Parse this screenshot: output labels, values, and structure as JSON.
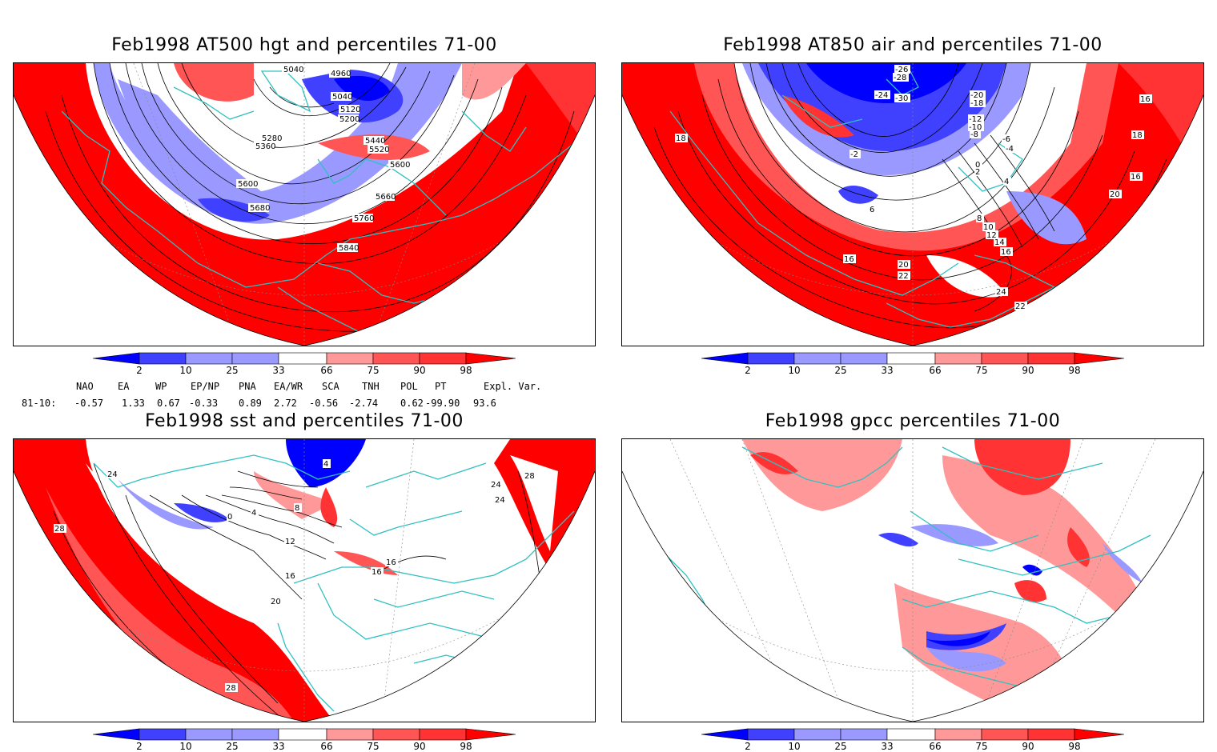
{
  "panels": {
    "p1": {
      "title": "Feb1998 AT500 hgt and percentiles 71-00",
      "contour_labels": [
        "5040",
        "4960",
        "5040",
        "5120",
        "5200",
        "5280",
        "5360",
        "5440",
        "5520",
        "5600",
        "5600",
        "5680",
        "5660",
        "5760",
        "5840"
      ]
    },
    "p2": {
      "title": "Feb1998 AT850 air and percentiles 71-00",
      "contour_labels": [
        "-26",
        "-28",
        "-30",
        "-24",
        "-20",
        "-18",
        "-12",
        "-10",
        "-8",
        "-6",
        "-4",
        "-2",
        "0",
        "2",
        "4",
        "6",
        "8",
        "10",
        "12",
        "14",
        "16",
        "16",
        "16",
        "18",
        "18",
        "20",
        "20",
        "22",
        "22",
        "24",
        "16"
      ]
    },
    "p3": {
      "title": "Feb1998 sst and percentiles 71-00",
      "contour_labels": [
        "24",
        "28",
        "0",
        "4",
        "8",
        "12",
        "16",
        "20",
        "24",
        "28",
        "16",
        "16",
        "4",
        "24",
        "28"
      ]
    },
    "p4": {
      "title": "Feb1998 gpcc percentiles 71-00"
    }
  },
  "colorbar": {
    "labels": [
      "2",
      "10",
      "25",
      "33",
      "66",
      "75",
      "90",
      "98"
    ],
    "colors": {
      "blue_deep": "#0000ff",
      "blue_mid": "#4040ff",
      "blue_light": "#9999ff",
      "white": "#ffffff",
      "red_light": "#ff9999",
      "red_mid": "#ff5555",
      "red_strong": "#ff3333",
      "red_deep": "#ff0000"
    }
  },
  "indices": {
    "headers": [
      "NAO",
      "EA",
      "WP",
      "EP/NP",
      "PNA",
      "EA/WR",
      "SCA",
      "TNH",
      "POL",
      "PT",
      "Expl. Var."
    ],
    "row_label": "81-10:",
    "values": [
      "-0.57",
      "1.33",
      "0.67",
      "-0.33",
      "0.89",
      "2.72",
      "-0.56",
      "-2.74",
      "0.62",
      "-99.90",
      "93.6"
    ]
  },
  "colors": {
    "coast": "#30c0c0",
    "red": "#ff0000",
    "blue": "#3333ff"
  }
}
